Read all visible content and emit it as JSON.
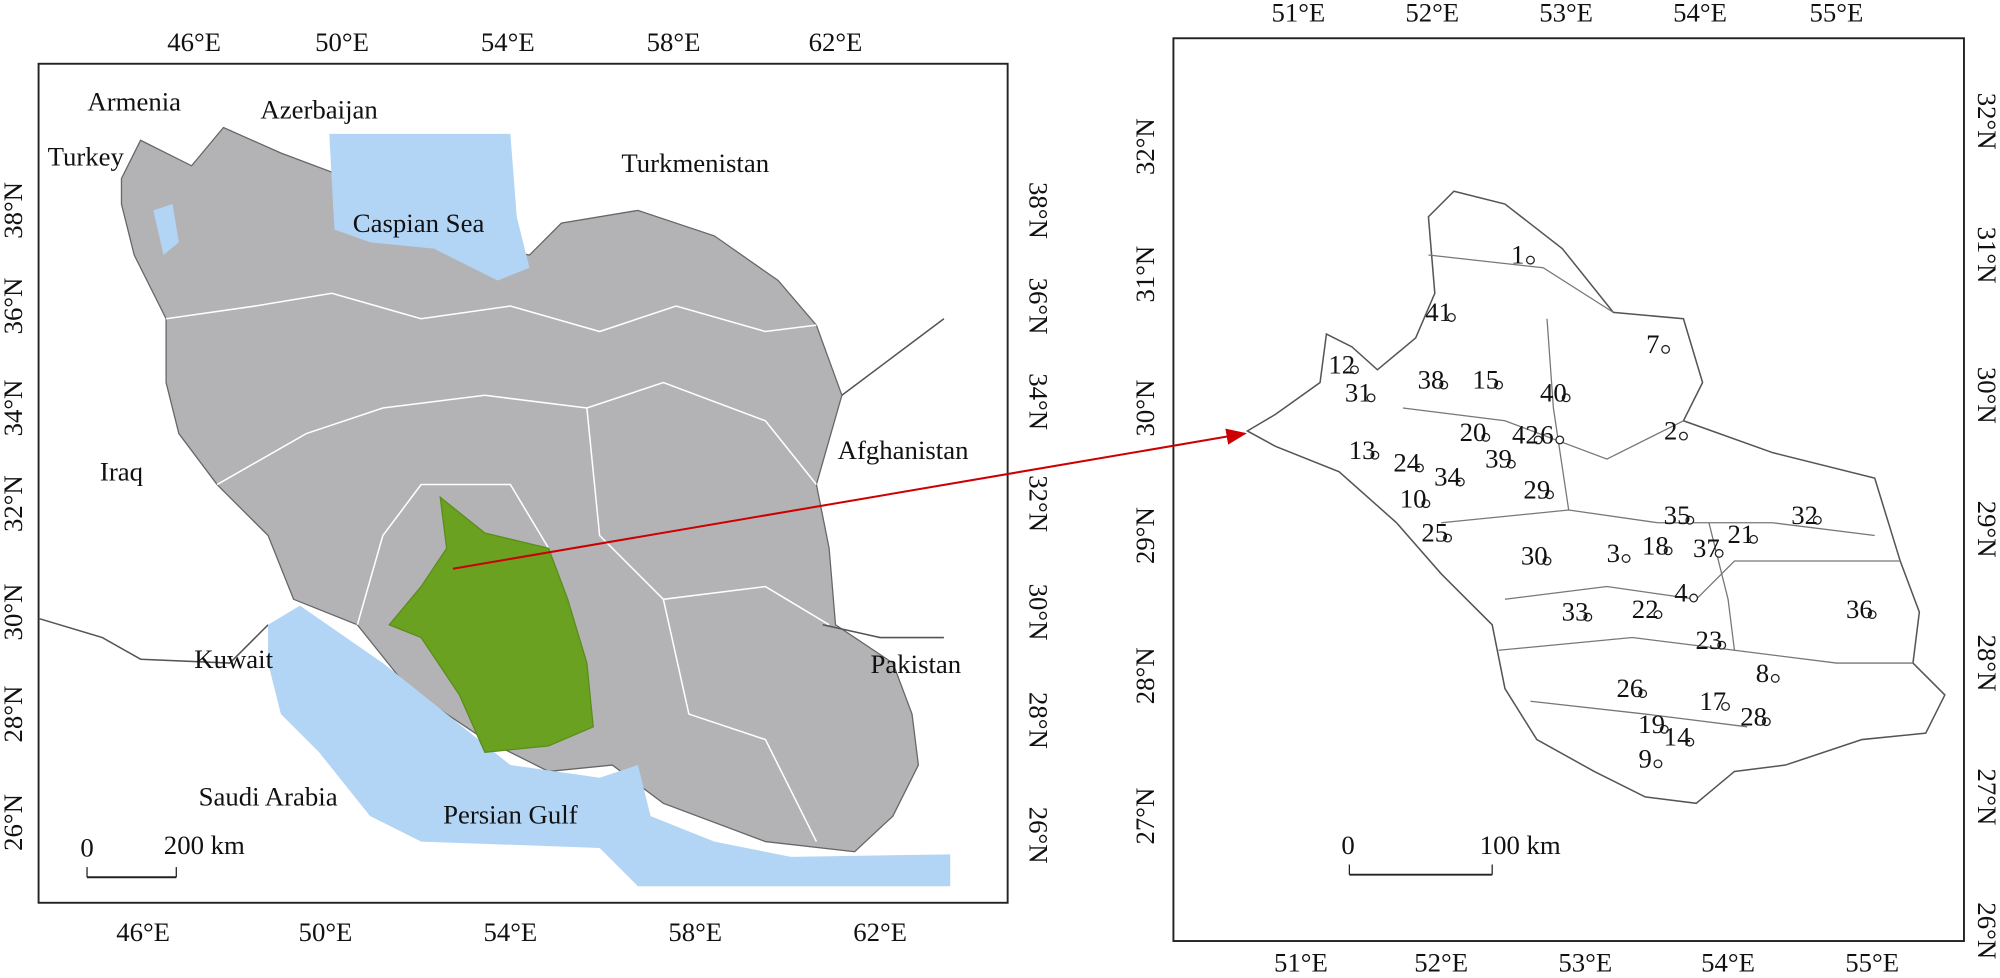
{
  "left_map": {
    "x_ticks_top": [
      "46°E",
      "50°E",
      "54°E",
      "58°E",
      "62°E"
    ],
    "x_ticks_bottom": [
      "46°E",
      "50°E",
      "54°E",
      "58°E",
      "62°E"
    ],
    "y_ticks_left": [
      "38°N",
      "36°N",
      "34°N",
      "32°N",
      "30°N",
      "28°N",
      "26°N"
    ],
    "y_ticks_right": [
      "38°N",
      "36°N",
      "34°N",
      "32°N",
      "30°N",
      "28°N",
      "26°N"
    ],
    "labels": [
      "Armenia",
      "Azerbaijan",
      "Turkey",
      "Turkmenistan",
      "Caspian Sea",
      "Afghanistan",
      "Iraq",
      "Kuwait",
      "Pakistan",
      "Saudi Arabia",
      "Persian Gulf"
    ],
    "scale": [
      "0",
      "200 km"
    ]
  },
  "right_map": {
    "x_ticks_top": [
      "51°E",
      "52°E",
      "53°E",
      "54°E",
      "55°E"
    ],
    "x_ticks_bottom": [
      "51°E",
      "52°E",
      "53°E",
      "54°E",
      "55°E"
    ],
    "y_ticks_left": [
      "32°N",
      "31°N",
      "30°N",
      "29°N",
      "28°N",
      "27°N"
    ],
    "y_ticks_right": [
      "32°N",
      "31°N",
      "30°N",
      "29°N",
      "28°N",
      "27°N",
      "26°N"
    ],
    "stations": [
      "1",
      "41",
      "7",
      "12",
      "31",
      "38",
      "15",
      "40",
      "2",
      "20",
      "42",
      "6",
      "13",
      "24",
      "39",
      "34",
      "29",
      "10",
      "35",
      "32",
      "21",
      "25",
      "30",
      "3",
      "18",
      "37",
      "4",
      "36",
      "33",
      "22",
      "23",
      "8",
      "26",
      "17",
      "28",
      "19",
      "14",
      "9"
    ],
    "scale": [
      "0",
      "100 km"
    ]
  }
}
